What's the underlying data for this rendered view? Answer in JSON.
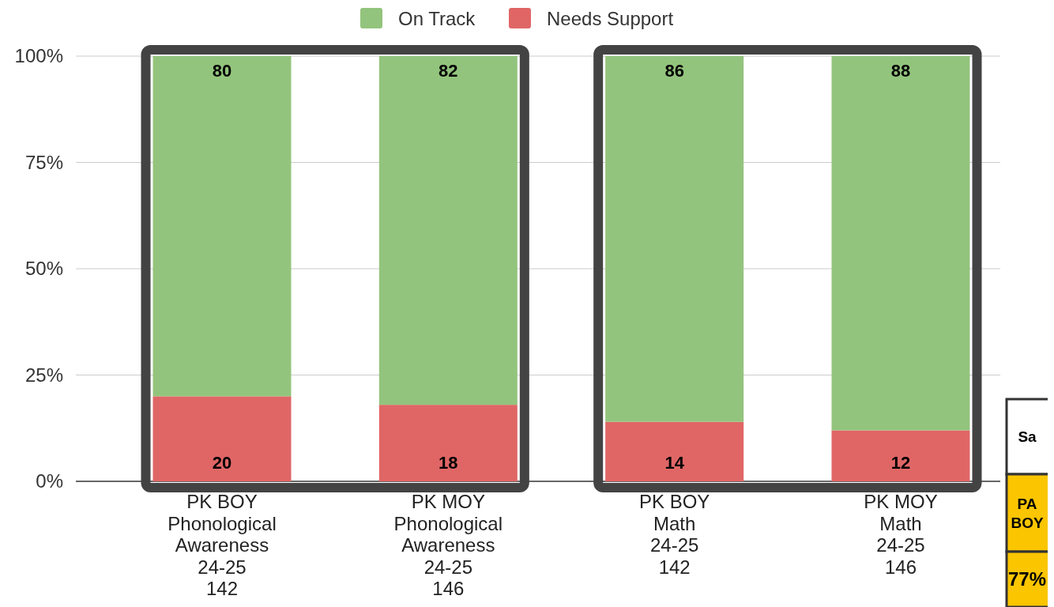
{
  "chart_data": {
    "type": "bar",
    "stacked": true,
    "categories": [
      "PK BOY\nPhonological\nAwareness\n24-25\n142",
      "PK MOY\nPhonological\nAwareness\n24-25\n146",
      "PK BOY\nMath\n24-25\n142",
      "PK MOY\nMath\n24-25\n146"
    ],
    "series": [
      {
        "name": "Needs Support",
        "color": "#e06666",
        "values": [
          20,
          18,
          14,
          12
        ]
      },
      {
        "name": "On Track",
        "color": "#93c47d",
        "values": [
          80,
          82,
          86,
          88
        ]
      }
    ],
    "ylim": [
      0,
      100
    ],
    "yticks": [
      {
        "value": 0,
        "label": "0%"
      },
      {
        "value": 25,
        "label": "25%"
      },
      {
        "value": 50,
        "label": "50%"
      },
      {
        "value": 75,
        "label": "75%"
      },
      {
        "value": 100,
        "label": "100%"
      }
    ],
    "grid": "y",
    "legend": "top",
    "data_labels": true,
    "annotations": [
      "Sa",
      "PA BOY",
      "77%"
    ]
  }
}
